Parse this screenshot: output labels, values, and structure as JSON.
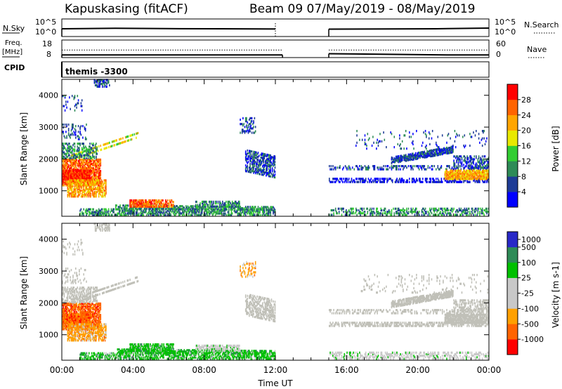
{
  "header": {
    "station": "Kapuskasing (fitACF)",
    "beam_info": "Beam 09  07/May/2019 - 08/May/2019"
  },
  "side_labels": {
    "nsky": "N.Sky",
    "freq": "Freq.",
    "freq_unit": "[MHz]",
    "cpid": "CPID",
    "nsearch": "N.Search",
    "nave": "Nave",
    "cpid_value": "themis -3300"
  },
  "strip_ticks": {
    "noise_left": [
      "10^5",
      "10^0"
    ],
    "noise_right": [
      "10^5",
      "10^0"
    ],
    "freq_left": [
      "18",
      "8"
    ],
    "nave_right": [
      "60",
      "0"
    ]
  },
  "colors": {
    "power": [
      "#0000ff",
      "#1e3c96",
      "#2e8b57",
      "#32cd32",
      "#e8e800",
      "#ffa500",
      "#ff6400",
      "#ff0000"
    ],
    "velocity": [
      "#ff0000",
      "#ff6400",
      "#ffa000",
      "#c8c8c8",
      "#c8c8c8",
      "#00c000",
      "#2e8b57",
      "#2828c8"
    ],
    "ground_scatter": "#c0c0b8"
  },
  "chart_data": [
    {
      "type": "line",
      "panel": "noise",
      "series": [
        {
          "name": "N.Sky",
          "segments": [
            {
              "x": [
                0,
                3,
                6,
                9,
                12
              ],
              "y": [
                2.2,
                2.35,
                2.25,
                2.2,
                2.15
              ]
            },
            {
              "x": [
                15,
                18,
                21,
                24
              ],
              "y": [
                2.1,
                2.15,
                2.2,
                2.4
              ]
            }
          ]
        }
      ]
    },
    {
      "type": "line",
      "panel": "frequency",
      "series": [
        {
          "name": "Freq.",
          "segments": [
            {
              "x": [
                0,
                12.4
              ],
              "y": [
                9.5,
                9.5
              ]
            },
            {
              "x": [
                15,
                22,
                24
              ],
              "y": [
                10.2,
                9.5,
                9.5
              ]
            }
          ]
        },
        {
          "name": "Nave",
          "segments": [
            {
              "x": [
                0,
                12.4
              ],
              "y": [
                26,
                26
              ]
            },
            {
              "x": [
                15,
                24
              ],
              "y": [
                26,
                26
              ]
            }
          ]
        }
      ]
    },
    {
      "type": "heatmap",
      "panel": "power",
      "xlabel": "",
      "ylabel": "Slant Range [km]",
      "xlim": [
        0,
        24
      ],
      "ylim": [
        200,
        4500
      ],
      "xticks": [
        "00:00",
        "04:00",
        "08:00",
        "12:00",
        "16:00",
        "20:00",
        "00:00"
      ],
      "yticks": [
        1000,
        2000,
        3000,
        4000
      ],
      "colorbar_label": "Power [dB]",
      "colorbar_ticks": [
        4,
        8,
        12,
        16,
        20,
        24,
        28
      ],
      "data_gap_hours": [
        12.0,
        15.0
      ]
    },
    {
      "type": "heatmap",
      "panel": "velocity",
      "xlabel": "Time UT",
      "ylabel": "Slant Range [km]",
      "xlim": [
        0,
        24
      ],
      "ylim": [
        200,
        4500
      ],
      "xticks": [
        "00:00",
        "04:00",
        "08:00",
        "12:00",
        "16:00",
        "20:00",
        "00:00"
      ],
      "yticks": [
        1000,
        2000,
        3000,
        4000
      ],
      "colorbar_label": "Velocity [m s-1]",
      "colorbar_ticks": [
        -1000,
        -500,
        -100,
        -25,
        25,
        100,
        500,
        1000
      ],
      "data_gap_hours": [
        12.0,
        15.0
      ]
    }
  ]
}
